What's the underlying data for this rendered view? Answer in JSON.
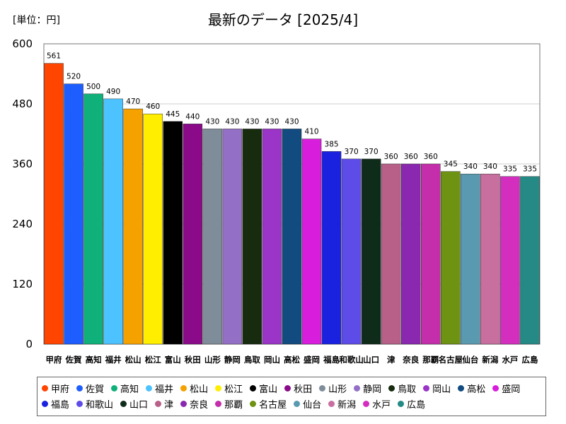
{
  "chart_data": {
    "type": "bar",
    "title": "最新のデータ [2025/4]",
    "unit_label": "[単位：円]",
    "ylim": [
      0,
      600
    ],
    "yticks": [
      0,
      120,
      240,
      360,
      480,
      600
    ],
    "categories": [
      "甲府",
      "佐賀",
      "高知",
      "福井",
      "松山",
      "松江",
      "富山",
      "秋田",
      "山形",
      "静岡",
      "鳥取",
      "岡山",
      "高松",
      "盛岡",
      "福島",
      "和歌山",
      "山口",
      "津",
      "奈良",
      "那覇",
      "名古屋",
      "仙台",
      "新潟",
      "水戸",
      "広島"
    ],
    "tick_labels": [
      "甲府",
      "佐賀",
      "高知",
      "福井",
      "松山",
      "松江",
      "富山",
      "秋田",
      "山形",
      "静岡",
      "鳥取",
      "岡山",
      "高松",
      "盛岡",
      "福島",
      "和歌山",
      "山口",
      "津",
      "奈良",
      "那覇",
      "名古屋",
      "仙台",
      "新潟",
      "水戸",
      "広島"
    ],
    "values": [
      561,
      520,
      500,
      490,
      470,
      460,
      445,
      440,
      430,
      430,
      430,
      430,
      430,
      410,
      385,
      370,
      370,
      360,
      360,
      360,
      345,
      340,
      340,
      335,
      335
    ],
    "colors": [
      "#ff4500",
      "#1e5eff",
      "#10b07a",
      "#4cc3ff",
      "#f5a200",
      "#ffee00",
      "#000000",
      "#8a0a8a",
      "#7f8c99",
      "#9370c6",
      "#172b0f",
      "#9a35c8",
      "#114b80",
      "#d81ddc",
      "#1a22e0",
      "#5e4ce8",
      "#0f2b1a",
      "#b86088",
      "#8a28b0",
      "#c42eaa",
      "#6e9212",
      "#5a9ab0",
      "#c86fa0",
      "#d42ebf",
      "#258a86"
    ]
  }
}
